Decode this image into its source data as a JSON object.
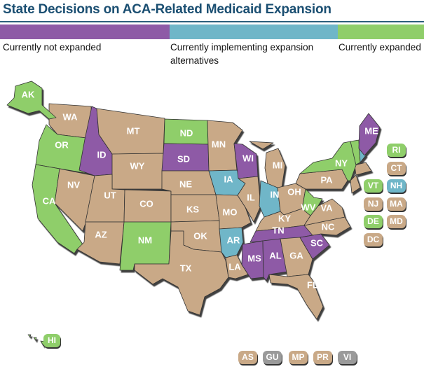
{
  "title": "State Decisions on ACA-Related Medicaid Expansion",
  "colors": {
    "not_expanded": "#8e5aa6",
    "implementing": "#6fb6c8",
    "expanded": "#8fce6a",
    "other": "#c9a987",
    "territory_gray": "#9a9a9a"
  },
  "legend": [
    {
      "label": "Currently not expanded",
      "status": "not_expanded"
    },
    {
      "label": "Currently implementing expansion alternatives",
      "status": "implementing"
    },
    {
      "label": "Currently expanded",
      "status": "expanded"
    }
  ],
  "states": [
    {
      "abbr": "WA",
      "status": "other"
    },
    {
      "abbr": "OR",
      "status": "expanded"
    },
    {
      "abbr": "CA",
      "status": "expanded"
    },
    {
      "abbr": "NV",
      "status": "other"
    },
    {
      "abbr": "ID",
      "status": "not_expanded"
    },
    {
      "abbr": "MT",
      "status": "other"
    },
    {
      "abbr": "WY",
      "status": "other"
    },
    {
      "abbr": "UT",
      "status": "other"
    },
    {
      "abbr": "AZ",
      "status": "other"
    },
    {
      "abbr": "CO",
      "status": "other"
    },
    {
      "abbr": "NM",
      "status": "expanded"
    },
    {
      "abbr": "ND",
      "status": "expanded"
    },
    {
      "abbr": "SD",
      "status": "not_expanded"
    },
    {
      "abbr": "NE",
      "status": "other"
    },
    {
      "abbr": "KS",
      "status": "other"
    },
    {
      "abbr": "OK",
      "status": "other"
    },
    {
      "abbr": "TX",
      "status": "other"
    },
    {
      "abbr": "MN",
      "status": "other"
    },
    {
      "abbr": "IA",
      "status": "implementing"
    },
    {
      "abbr": "MO",
      "status": "other"
    },
    {
      "abbr": "AR",
      "status": "implementing"
    },
    {
      "abbr": "LA",
      "status": "other"
    },
    {
      "abbr": "WI",
      "status": "not_expanded"
    },
    {
      "abbr": "IL",
      "status": "other"
    },
    {
      "abbr": "MI",
      "status": "other"
    },
    {
      "abbr": "IN",
      "status": "implementing"
    },
    {
      "abbr": "OH",
      "status": "other"
    },
    {
      "abbr": "KY",
      "status": "other"
    },
    {
      "abbr": "TN",
      "status": "not_expanded"
    },
    {
      "abbr": "MS",
      "status": "not_expanded"
    },
    {
      "abbr": "AL",
      "status": "not_expanded"
    },
    {
      "abbr": "GA",
      "status": "other"
    },
    {
      "abbr": "FL",
      "status": "other"
    },
    {
      "abbr": "SC",
      "status": "not_expanded"
    },
    {
      "abbr": "NC",
      "status": "other"
    },
    {
      "abbr": "VA",
      "status": "other"
    },
    {
      "abbr": "WV",
      "status": "expanded"
    },
    {
      "abbr": "PA",
      "status": "other"
    },
    {
      "abbr": "NY",
      "status": "expanded"
    },
    {
      "abbr": "ME",
      "status": "not_expanded"
    },
    {
      "abbr": "AK",
      "status": "expanded"
    },
    {
      "abbr": "HI",
      "status": "expanded"
    }
  ],
  "small_states": [
    {
      "abbr": "RI",
      "status": "expanded"
    },
    {
      "abbr": "CT",
      "status": "other"
    },
    {
      "abbr": "VT",
      "status": "expanded"
    },
    {
      "abbr": "NH",
      "status": "implementing"
    },
    {
      "abbr": "NJ",
      "status": "other"
    },
    {
      "abbr": "MA",
      "status": "other"
    },
    {
      "abbr": "DE",
      "status": "expanded"
    },
    {
      "abbr": "MD",
      "status": "other"
    },
    {
      "abbr": "DC",
      "status": "other"
    }
  ],
  "territories": [
    {
      "abbr": "AS",
      "status": "other"
    },
    {
      "abbr": "GU",
      "status": "territory_gray"
    },
    {
      "abbr": "MP",
      "status": "other"
    },
    {
      "abbr": "PR",
      "status": "other"
    },
    {
      "abbr": "VI",
      "status": "territory_gray"
    }
  ]
}
